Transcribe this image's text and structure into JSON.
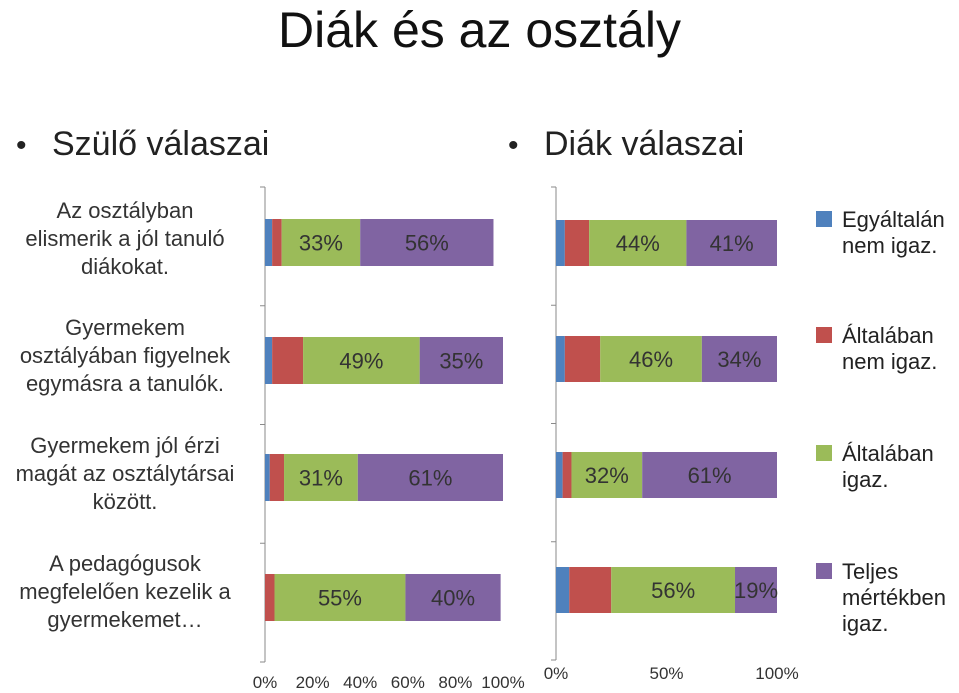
{
  "title": "Diák és az osztály",
  "left_heading": "Szülő válaszai",
  "right_heading": "Diák  válaszai",
  "bullet": "•",
  "questions": [
    "Az osztályban elismerik a jól tanuló diákokat.",
    "Gyermekem osztályában figyelnek egymásra a tanulók.",
    "Gyermekem jól érzi magát az osztálytársai között.",
    "A pedagógusok megfelelően kezelik a gyermekemet…"
  ],
  "question_lines": [
    [
      "Az osztályban",
      "elismerik a jól tanuló",
      "diákokat."
    ],
    [
      "Gyermekem",
      "osztályában figyelnek",
      "egymásra a tanulók."
    ],
    [
      "Gyermekem jól érzi",
      "magát az osztálytársai",
      "között."
    ],
    [
      "A pedagógusok",
      "megfelelően kezelik a",
      "gyermekemet…"
    ]
  ],
  "legend": [
    {
      "label": "Egyáltalán nem igaz.",
      "lines": [
        "Egyáltalán",
        "nem igaz."
      ],
      "color": "#4F81BD"
    },
    {
      "label": "Általában nem igaz.",
      "lines": [
        "Általában",
        "nem igaz."
      ],
      "color": "#C0504D"
    },
    {
      "label": "Általában igaz.",
      "lines": [
        "Általában",
        "igaz."
      ],
      "color": "#9BBB59"
    },
    {
      "label": "Teljes mértékben igaz.",
      "lines": [
        "Teljes",
        "mértékben",
        "igaz."
      ],
      "color": "#8064A2"
    }
  ],
  "chart_data": [
    {
      "type": "bar",
      "orientation": "horizontal",
      "stacked": "percent",
      "title": "Szülő válaszai",
      "categories": [
        "Az osztályban elismerik a jól tanuló diákokat.",
        "Gyermekem osztályában figyelnek egymásra a tanulók.",
        "Gyermekem jól érzi magát az osztálytársai között.",
        "A pedagógusok megfelelően kezelik a gyermekemet…"
      ],
      "series": [
        {
          "name": "Egyáltalán nem igaz.",
          "color": "#4F81BD",
          "values": [
            3,
            3,
            2,
            0
          ]
        },
        {
          "name": "Általában nem igaz.",
          "color": "#C0504D",
          "values": [
            4,
            13,
            6,
            4
          ]
        },
        {
          "name": "Általában igaz.",
          "color": "#9BBB59",
          "values": [
            33,
            49,
            31,
            55
          ]
        },
        {
          "name": "Teljes mértékben igaz.",
          "color": "#8064A2",
          "values": [
            56,
            35,
            61,
            40
          ]
        }
      ],
      "data_labels": [
        [
          "",
          "",
          "33%",
          "56%"
        ],
        [
          "",
          "",
          "49%",
          "35%"
        ],
        [
          "",
          "",
          "31%",
          "61%"
        ],
        [
          "",
          "",
          "55%",
          "40%"
        ]
      ],
      "xlim": [
        0,
        100
      ],
      "xticks": [
        "0%",
        "20%",
        "40%",
        "60%",
        "80%",
        "100%"
      ],
      "grid": false
    },
    {
      "type": "bar",
      "orientation": "horizontal",
      "stacked": "percent",
      "title": "Diák  válaszai",
      "categories": [
        "Az osztályban elismerik a jól tanuló diákokat.",
        "Gyermekem osztályában figyelnek egymásra a tanulók.",
        "Gyermekem jól érzi magát az osztálytársai között.",
        "A pedagógusok megfelelően kezelik a gyermekemet…"
      ],
      "series": [
        {
          "name": "Egyáltalán nem igaz.",
          "color": "#4F81BD",
          "values": [
            4,
            4,
            3,
            6
          ]
        },
        {
          "name": "Általában nem igaz.",
          "color": "#C0504D",
          "values": [
            11,
            16,
            4,
            19
          ]
        },
        {
          "name": "Általában igaz.",
          "color": "#9BBB59",
          "values": [
            44,
            46,
            32,
            56
          ]
        },
        {
          "name": "Teljes mértékben igaz.",
          "color": "#8064A2",
          "values": [
            41,
            34,
            61,
            19
          ]
        }
      ],
      "data_labels": [
        [
          "",
          "",
          "44%",
          "41%"
        ],
        [
          "",
          "",
          "46%",
          "34%"
        ],
        [
          "",
          "",
          "32%",
          "61%"
        ],
        [
          "",
          "",
          "56%",
          "19%"
        ]
      ],
      "xlim": [
        0,
        100
      ],
      "xticks": [
        "0%",
        "50%",
        "100%"
      ],
      "grid": false,
      "legend": "right"
    }
  ]
}
